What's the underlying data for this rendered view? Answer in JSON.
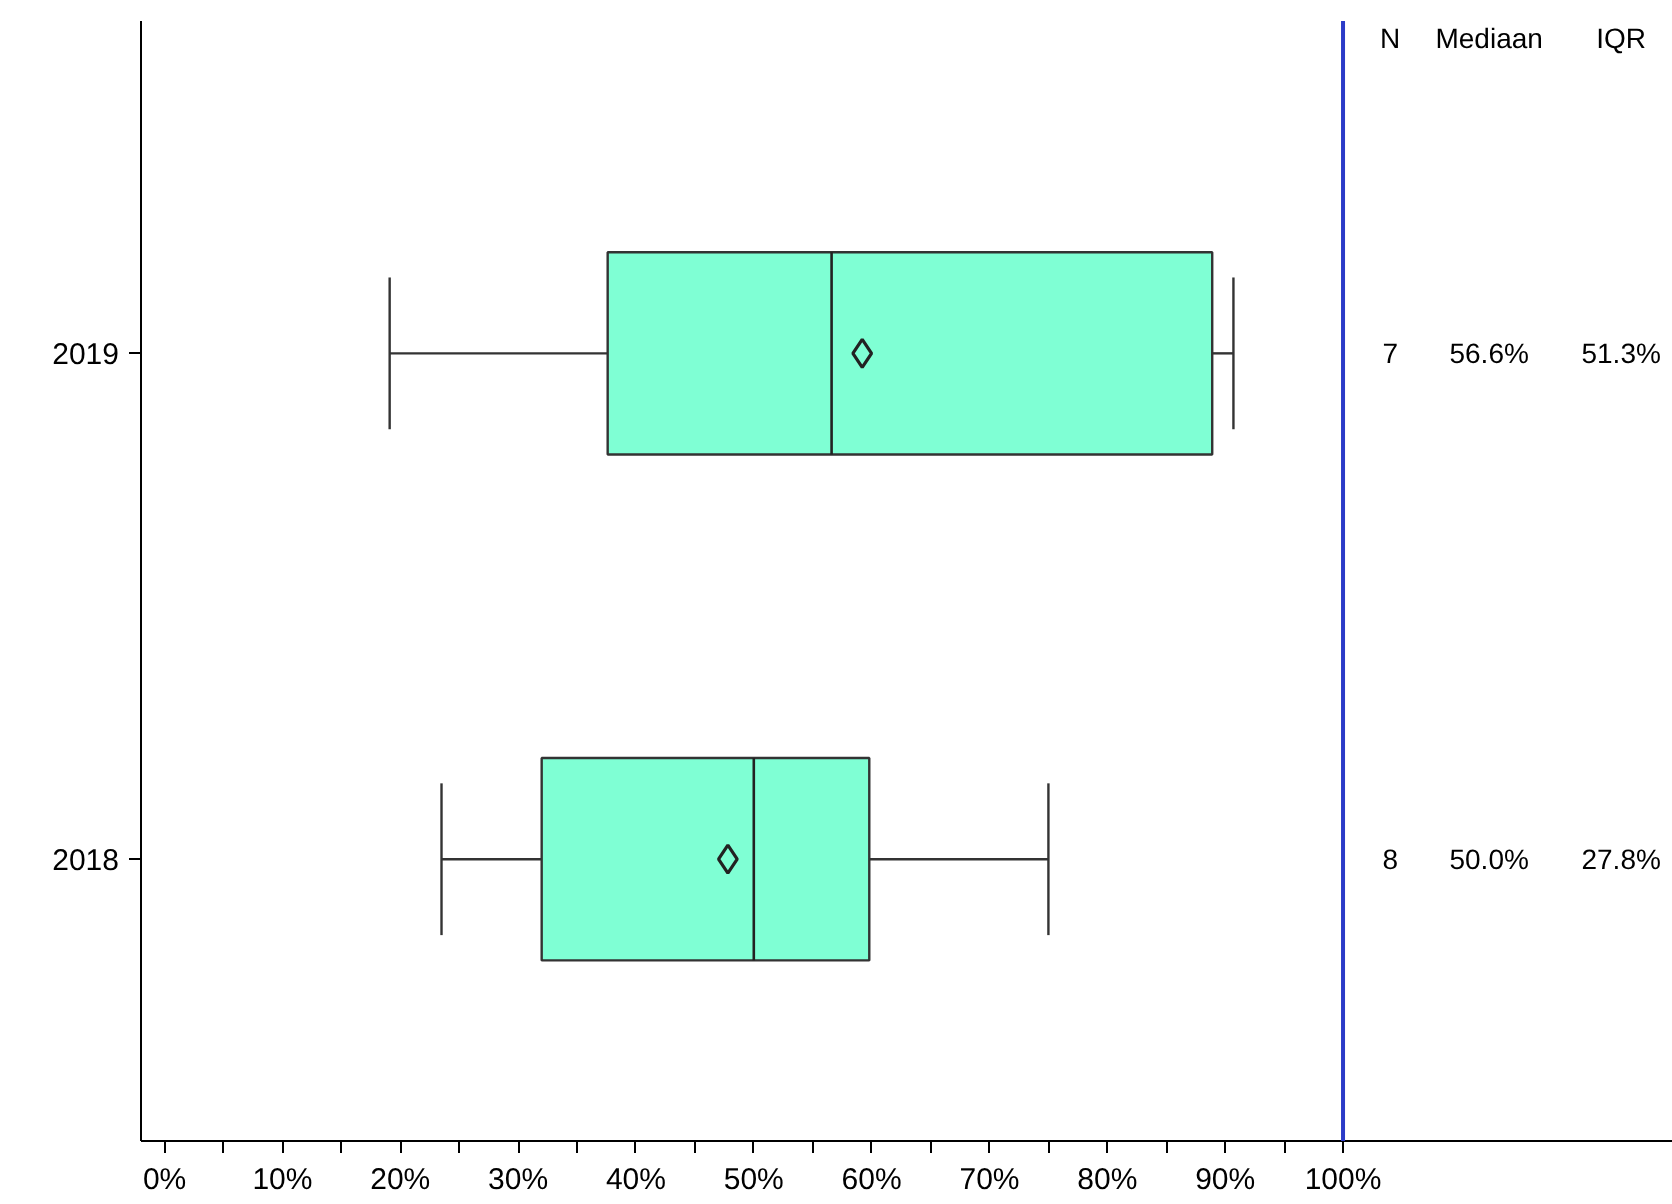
{
  "chart_data": {
    "type": "box",
    "orientation": "horizontal",
    "categories": [
      "2019",
      "2018"
    ],
    "boxes": [
      {
        "low": 19.1,
        "q1": 37.6,
        "median": 56.6,
        "q3": 88.9,
        "high": 90.7,
        "mean": 59.2
      },
      {
        "low": 23.5,
        "q1": 32.0,
        "median": 50.0,
        "q3": 59.8,
        "high": 75.0,
        "mean": 47.8
      }
    ],
    "color": "#7fffd4",
    "marker": "diamond",
    "xlim": [
      -2,
      128
    ],
    "xticks": [
      {
        "value": 0,
        "label": "0%"
      },
      {
        "value": 5,
        "label": null
      },
      {
        "value": 10,
        "label": "10%"
      },
      {
        "value": 15,
        "label": null
      },
      {
        "value": 20,
        "label": "20%"
      },
      {
        "value": 25,
        "label": null
      },
      {
        "value": 30,
        "label": "30%"
      },
      {
        "value": 35,
        "label": null
      },
      {
        "value": 40,
        "label": "40%"
      },
      {
        "value": 45,
        "label": null
      },
      {
        "value": 50,
        "label": "50%"
      },
      {
        "value": 55,
        "label": null
      },
      {
        "value": 60,
        "label": "60%"
      },
      {
        "value": 65,
        "label": null
      },
      {
        "value": 70,
        "label": "70%"
      },
      {
        "value": 75,
        "label": null
      },
      {
        "value": 80,
        "label": "80%"
      },
      {
        "value": 85,
        "label": null
      },
      {
        "value": 90,
        "label": "90%"
      },
      {
        "value": 95,
        "label": null
      },
      {
        "value": 100,
        "label": "100%"
      }
    ],
    "ref_lines": [
      {
        "axis": "x",
        "value": 100,
        "color": "#2b3bc8"
      }
    ],
    "annotations": [
      "N",
      "Mediaan",
      "IQR",
      "7",
      "56.6%",
      "51.3%",
      "8",
      "50.0%",
      "27.8%"
    ],
    "grid": false
  }
}
